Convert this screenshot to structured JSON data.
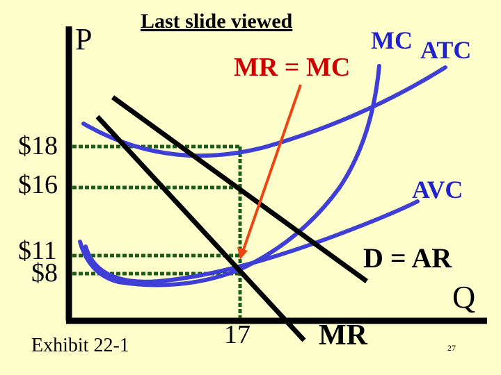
{
  "slide": {
    "nav_label": "Last slide viewed",
    "exhibit_label": "Exhibit 22-1",
    "page_number": "27"
  },
  "axes": {
    "y_label": "P",
    "x_label": "Q"
  },
  "price_labels": [
    "$18",
    "$16",
    "$11",
    "$8"
  ],
  "quantity_label": "17",
  "curve_labels": {
    "mc": "MC",
    "atc": "ATC",
    "avc": "AVC",
    "demand": "D = AR",
    "mr": "MR",
    "callout": "MR = MC"
  },
  "colors": {
    "background": "#ffffcc",
    "curve_blue": "#3f3fd8",
    "guide_green": "#1a5c1a",
    "arrow_red": "#ee4411",
    "axis": "#000000",
    "label_blue": "#2222cc",
    "label_red": "#cc0000"
  }
}
